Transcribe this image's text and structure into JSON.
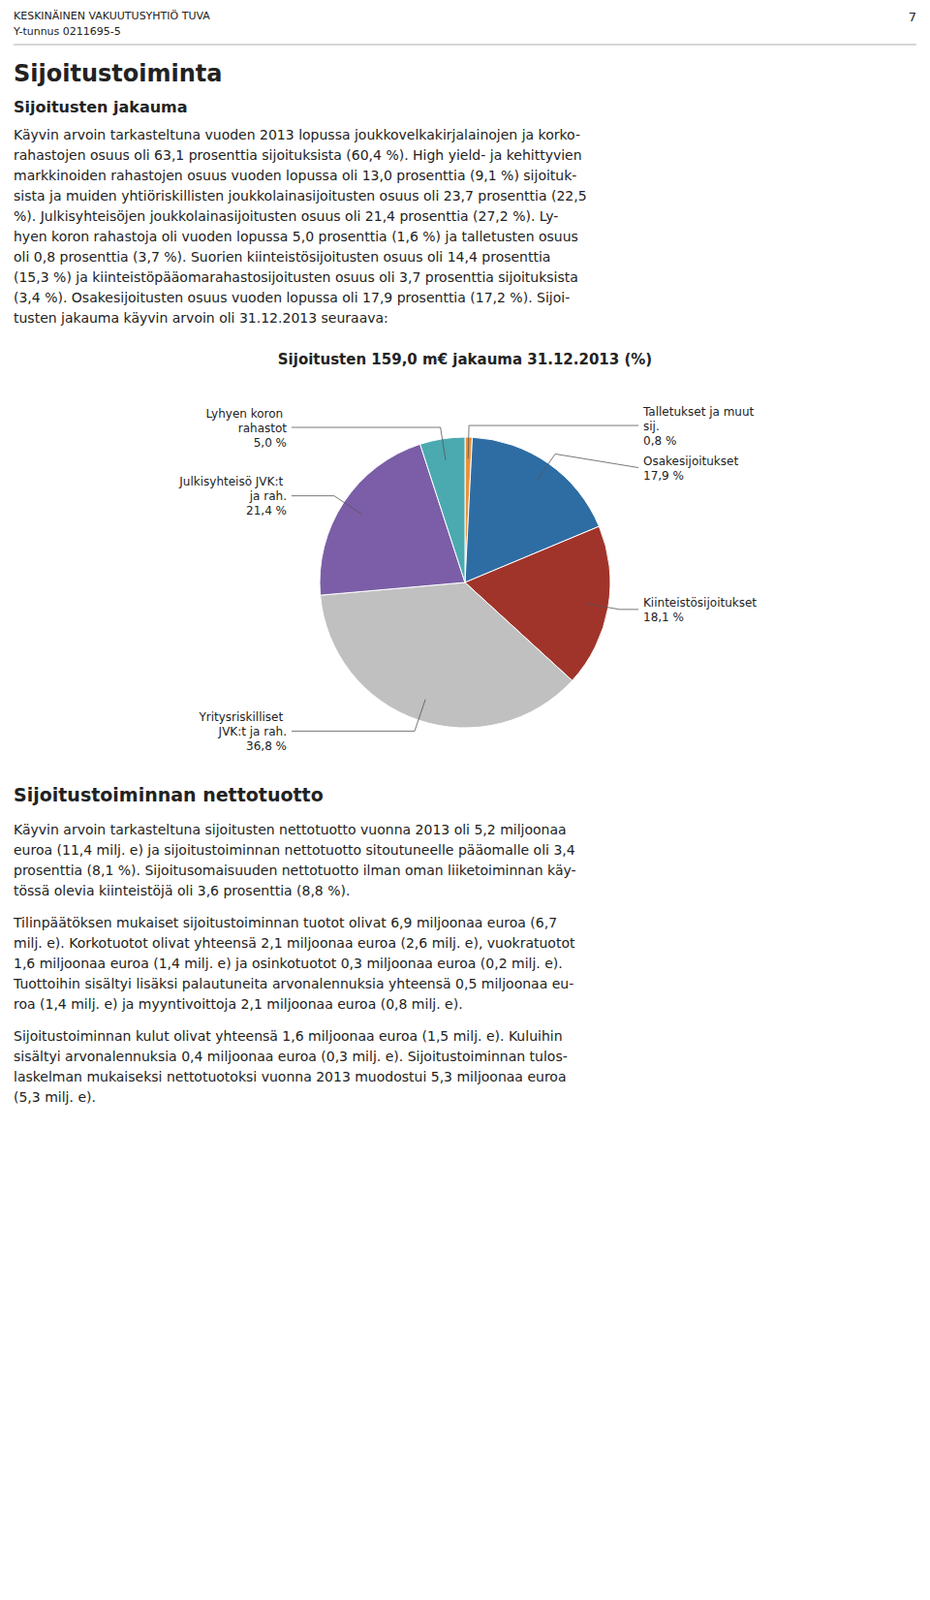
{
  "page_header": "KESKINÄINEN VAKUUTUSYHTIÖ TUVA",
  "page_subheader": "Y-tunnus 0211695-5",
  "page_number": "7",
  "section_title": "Sijoitustoiminta",
  "subsection_title": "Sijoitusten jakauma",
  "body_1": [
    "Käyvin arvoin tarkasteltuna vuoden 2013 lopussa joukkovelkakirjalainojen ja korko-",
    "rahastojen osuus oli 63,1 prosenttia sijoituksista (60,4 %). High yield- ja kehittyvien",
    "markkinoiden rahastojen osuus vuoden lopussa oli 13,0 prosenttia (9,1 %) sijoituk-",
    "sista ja muiden yhtiöriskillisten joukkolainasijoitusten osuus oli 23,7 prosenttia (22,5",
    "%). Julkisyhteisöjen joukkolainasijoitusten osuus oli 21,4 prosenttia (27,2 %). Ly-",
    "hyen koron rahastoja oli vuoden lopussa 5,0 prosenttia (1,6 %) ja talletusten osuus",
    "oli 0,8 prosenttia (3,7 %). Suorien kiinteistösijoitusten osuus oli 14,4 prosenttia",
    "(15,3 %) ja kiinteistöpääomarahastosijoitusten osuus oli 3,7 prosenttia sijoituksista",
    "(3,4 %). Osakesijoitusten osuus vuoden lopussa oli 17,9 prosenttia (17,2 %). Sijoi-",
    "tusten jakauma käyvin arvoin oli 31.12.2013 seuraava:"
  ],
  "chart_data": {
    "type": "pie",
    "title": "Sijoitusten 159,0 m€ jakauma 31.12.2013 (%)",
    "categories": [
      "Talletukset ja muut sij.",
      "Osakesijoitukset",
      "Kiinteistösijoitukset",
      "Yritysriskilliset JVK:t ja rah.",
      "Julkisyhteisö JVK:t ja rah.",
      "Lyhyen koron rahastot"
    ],
    "values": [
      0.8,
      17.9,
      18.1,
      36.8,
      21.4,
      5.0
    ],
    "value_labels": [
      "0,8 %",
      "17,9 %",
      "18,1 %",
      "36,8 %",
      "21,4 %",
      "5,0 %"
    ],
    "colors": [
      "#E8923A",
      "#2E6DA4",
      "#A0342A",
      "#C0C0C0",
      "#7B5EA7",
      "#4aaab0"
    ],
    "data_labels": true
  },
  "section_title_2": "Sijoitustoiminnan nettotuotto",
  "body_2": [
    "Käyvin arvoin tarkasteltuna sijoitusten nettotuotto vuonna 2013 oli 5,2 miljoonaa",
    "euroa (11,4 milj. e) ja sijoitustoiminnan nettotuotto sitoutuneelle pääomalle oli 3,4",
    "prosenttia (8,1 %). Sijoitusomaisuuden nettotuotto ilman oman liiketoiminnan käy-",
    "tössä olevia kiinteistöjä oli 3,6 prosenttia (8,8 %)."
  ],
  "body_3": [
    "Tilinpäätöksen mukaiset sijoitustoiminnan tuotot olivat 6,9 miljoonaa euroa (6,7",
    "milj. e). Korkotuotot olivat yhteensä 2,1 miljoonaa euroa (2,6 milj. e), vuokratuotot",
    "1,6 miljoonaa euroa (1,4 milj. e) ja osinkotuotot 0,3 miljoonaa euroa (0,2 milj. e).",
    "Tuottoihin sisältyi lisäksi palautuneita arvonalennuksia yhteensä 0,5 miljoonaa eu-",
    "roa (1,4 milj. e) ja myyntivoittoja 2,1 miljoonaa euroa (0,8 milj. e)."
  ],
  "body_4": [
    "Sijoitustoiminnan kulut olivat yhteensä 1,6 miljoonaa euroa (1,5 milj. e). Kuluihin",
    "sisältyi arvonalennuksia 0,4 miljoonaa euroa (0,3 milj. e). Sijoitustoiminnan tulos-",
    "laskelman mukaiseksi nettotuotoksi vuonna 2013 muodostui 5,3 miljoonaa euroa",
    "(5,3 milj. e)."
  ]
}
